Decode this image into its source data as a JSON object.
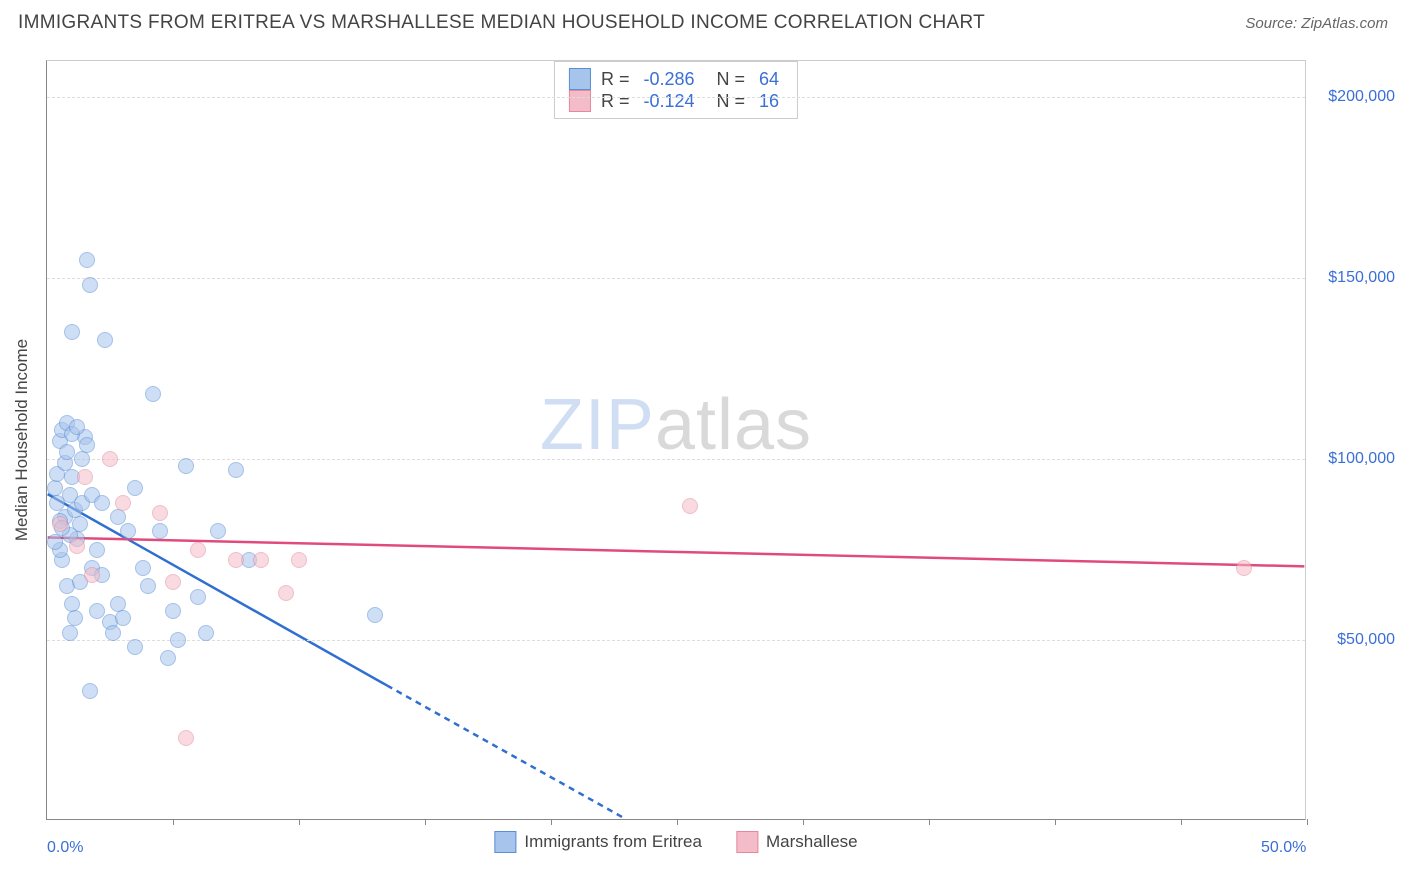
{
  "header": {
    "title": "IMMIGRANTS FROM ERITREA VS MARSHALLESE MEDIAN HOUSEHOLD INCOME CORRELATION CHART",
    "source_prefix": "Source: ",
    "source_name": "ZipAtlas.com"
  },
  "chart": {
    "type": "scatter",
    "ylabel": "Median Household Income",
    "xlim": [
      0,
      50
    ],
    "ylim": [
      0,
      210000
    ],
    "x_tick_positions": [
      5,
      10,
      15,
      20,
      25,
      30,
      35,
      40,
      45,
      50
    ],
    "x_labels": [
      {
        "value": 0,
        "text": "0.0%"
      },
      {
        "value": 50,
        "text": "50.0%"
      }
    ],
    "y_gridlines": [
      50000,
      100000,
      150000,
      200000
    ],
    "y_labels": [
      "$50,000",
      "$100,000",
      "$150,000",
      "$200,000"
    ],
    "background_color": "#ffffff",
    "grid_color": "#dddddd",
    "axis_color": "#888888",
    "tick_label_color": "#3b6fd6",
    "point_radius": 8,
    "point_opacity": 0.55,
    "point_stroke_width": 1.2,
    "watermark": {
      "zip": "ZIP",
      "atlas": "atlas"
    },
    "series": [
      {
        "name": "Immigrants from Eritrea",
        "fill_color": "#a7c4ec",
        "stroke_color": "#5a8fd6",
        "regression_color": "#2f6fd0",
        "R": "-0.286",
        "N": "64",
        "regression": {
          "x1": 0,
          "y1": 90000,
          "x2_solid": 13.5,
          "y2_solid": 37000,
          "x2_dash": 23,
          "y2_dash": 0
        },
        "points": [
          [
            0.3,
            92000
          ],
          [
            0.4,
            88000
          ],
          [
            0.5,
            105000
          ],
          [
            0.6,
            108000
          ],
          [
            0.7,
            84000
          ],
          [
            0.8,
            110000
          ],
          [
            0.9,
            90000
          ],
          [
            1.0,
            95000
          ],
          [
            1.1,
            86000
          ],
          [
            1.2,
            78000
          ],
          [
            1.3,
            82000
          ],
          [
            1.4,
            100000
          ],
          [
            1.5,
            106000
          ],
          [
            1.6,
            155000
          ],
          [
            1.7,
            148000
          ],
          [
            1.0,
            135000
          ],
          [
            1.8,
            70000
          ],
          [
            2.0,
            75000
          ],
          [
            2.2,
            68000
          ],
          [
            2.3,
            133000
          ],
          [
            2.5,
            55000
          ],
          [
            2.6,
            52000
          ],
          [
            2.8,
            60000
          ],
          [
            3.0,
            56000
          ],
          [
            3.2,
            80000
          ],
          [
            3.5,
            48000
          ],
          [
            3.8,
            70000
          ],
          [
            4.0,
            65000
          ],
          [
            4.2,
            118000
          ],
          [
            4.5,
            80000
          ],
          [
            5.0,
            58000
          ],
          [
            5.2,
            50000
          ],
          [
            5.5,
            98000
          ],
          [
            6.0,
            62000
          ],
          [
            6.3,
            52000
          ],
          [
            6.8,
            80000
          ],
          [
            7.5,
            97000
          ],
          [
            8.0,
            72000
          ],
          [
            2.0,
            58000
          ],
          [
            1.0,
            60000
          ],
          [
            0.8,
            65000
          ],
          [
            0.6,
            72000
          ],
          [
            0.5,
            75000
          ],
          [
            1.3,
            66000
          ],
          [
            1.1,
            56000
          ],
          [
            2.8,
            84000
          ],
          [
            3.5,
            92000
          ],
          [
            0.9,
            52000
          ],
          [
            1.7,
            36000
          ],
          [
            4.8,
            45000
          ],
          [
            0.4,
            96000
          ],
          [
            0.7,
            99000
          ],
          [
            0.8,
            102000
          ],
          [
            1.0,
            107000
          ],
          [
            1.2,
            109000
          ],
          [
            1.6,
            104000
          ],
          [
            0.5,
            83000
          ],
          [
            0.9,
            79000
          ],
          [
            1.4,
            88000
          ],
          [
            1.8,
            90000
          ],
          [
            0.3,
            77000
          ],
          [
            0.6,
            81000
          ],
          [
            2.2,
            88000
          ],
          [
            13.0,
            57000
          ]
        ]
      },
      {
        "name": "Marshallese",
        "fill_color": "#f4bcc8",
        "stroke_color": "#e6899f",
        "regression_color": "#e04b7b",
        "R": "-0.124",
        "N": "16",
        "regression": {
          "x1": 0,
          "y1": 78000,
          "x2_solid": 50,
          "y2_solid": 70000
        },
        "points": [
          [
            0.5,
            82000
          ],
          [
            1.2,
            76000
          ],
          [
            1.5,
            95000
          ],
          [
            1.8,
            68000
          ],
          [
            2.5,
            100000
          ],
          [
            3.0,
            88000
          ],
          [
            4.5,
            85000
          ],
          [
            5.0,
            66000
          ],
          [
            6.0,
            75000
          ],
          [
            7.5,
            72000
          ],
          [
            8.5,
            72000
          ],
          [
            9.5,
            63000
          ],
          [
            10.0,
            72000
          ],
          [
            25.5,
            87000
          ],
          [
            47.5,
            70000
          ],
          [
            5.5,
            23000
          ]
        ]
      }
    ],
    "bottom_legend": [
      {
        "swatch_fill": "#a7c4ec",
        "swatch_stroke": "#5a8fd6",
        "label": "Immigrants from Eritrea"
      },
      {
        "swatch_fill": "#f4bcc8",
        "swatch_stroke": "#e6899f",
        "label": "Marshallese"
      }
    ],
    "stats_legend_labels": {
      "R": "R =",
      "N": "N ="
    }
  }
}
